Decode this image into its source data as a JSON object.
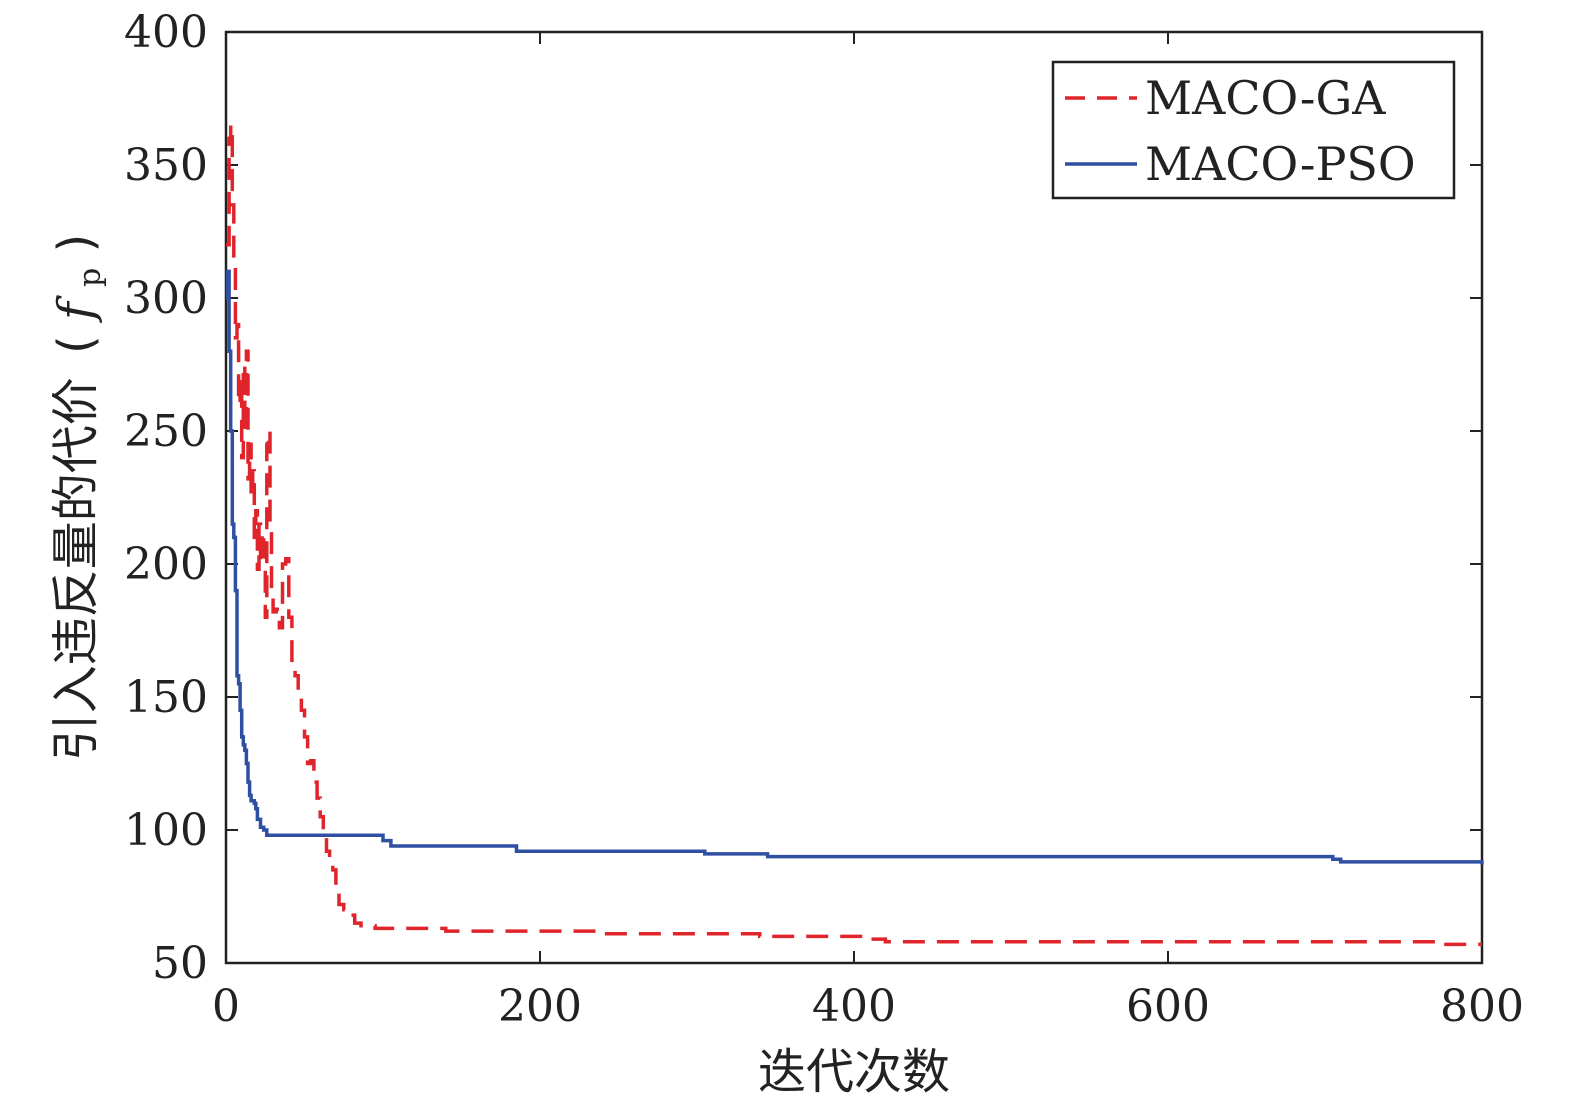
{
  "chart_data": {
    "type": "line",
    "xlabel": "迭代次数",
    "ylabel": "引入违反量的代价",
    "ylabel_symbol": "f",
    "ylabel_subscript": "p",
    "xlim": [
      0,
      800
    ],
    "ylim": [
      50,
      400
    ],
    "x_ticks": [
      0,
      200,
      400,
      600,
      800
    ],
    "y_ticks": [
      50,
      100,
      150,
      200,
      250,
      300,
      350,
      400
    ],
    "x_tick_labels": [
      "0",
      "200",
      "400",
      "600",
      "800"
    ],
    "y_tick_labels": [
      "50",
      "100",
      "150",
      "200",
      "250",
      "300",
      "350",
      "400"
    ],
    "grid": false,
    "legend_position": "top-right",
    "series": [
      {
        "name": "MACO-GA",
        "color": "#e0242b",
        "line_style": "dashed",
        "x": [
          0,
          2,
          3,
          4,
          5,
          6,
          7,
          8,
          9,
          10,
          11,
          12,
          13,
          14,
          15,
          16,
          17,
          18,
          19,
          20,
          21,
          22,
          23,
          24,
          25,
          26,
          27,
          28,
          29,
          30,
          32,
          34,
          36,
          38,
          40,
          42,
          44,
          46,
          48,
          50,
          52,
          54,
          56,
          58,
          60,
          62,
          64,
          66,
          68,
          70,
          72,
          75,
          78,
          82,
          86,
          90,
          95,
          100,
          120,
          140,
          160,
          180,
          200,
          240,
          280,
          300,
          340,
          380,
          410,
          420,
          500,
          600,
          700,
          760,
          770,
          800
        ],
        "y": [
          320,
          360,
          365,
          335,
          315,
          285,
          290,
          260,
          270,
          240,
          275,
          250,
          280,
          232,
          245,
          225,
          235,
          210,
          220,
          198,
          215,
          200,
          212,
          205,
          180,
          245,
          250,
          215,
          190,
          182,
          183,
          176,
          200,
          202,
          180,
          160,
          158,
          152,
          145,
          135,
          125,
          126,
          118,
          112,
          105,
          98,
          92,
          88,
          85,
          78,
          72,
          70,
          68,
          65,
          64,
          64,
          63,
          63,
          63,
          62,
          62,
          62,
          62,
          61,
          61,
          61,
          60,
          60,
          59,
          58,
          58,
          58,
          58,
          58,
          57,
          57
        ]
      },
      {
        "name": "MACO-PSO",
        "color": "#2f4fa3",
        "line_style": "solid",
        "x": [
          0,
          1,
          2,
          3,
          4,
          5,
          6,
          7,
          8,
          9,
          10,
          11,
          12,
          13,
          14,
          15,
          16,
          17,
          18,
          19,
          20,
          22,
          24,
          26,
          30,
          40,
          60,
          80,
          95,
          100,
          105,
          180,
          185,
          300,
          305,
          340,
          345,
          680,
          705,
          710,
          800
        ],
        "y": [
          300,
          310,
          280,
          250,
          215,
          210,
          190,
          158,
          155,
          145,
          135,
          132,
          130,
          125,
          118,
          113,
          111,
          111,
          110,
          108,
          104,
          101,
          100,
          98,
          98,
          98,
          98,
          98,
          98,
          96,
          94,
          94,
          92,
          92,
          91,
          91,
          90,
          90,
          89,
          88,
          87
        ]
      }
    ]
  }
}
